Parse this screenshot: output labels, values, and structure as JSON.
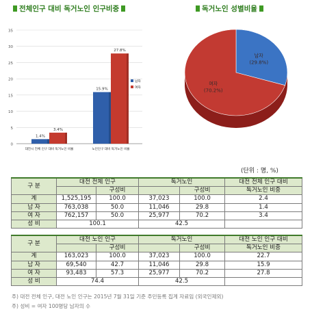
{
  "left_chart": {
    "title": "전체인구 대비 독거노인 인구비중",
    "colors": {
      "male": "#2f5faa",
      "female": "#c43a2e",
      "grid": "#d8d8d8"
    }
  },
  "right_chart": {
    "title": "독거노인 성별비율",
    "colors": {
      "male": "#3b74c4",
      "female": "#c23a32"
    }
  },
  "table": {
    "unit": "(단위 : 명, %)",
    "t1": {
      "h1": "구 분",
      "h2": "대전 전체 인구",
      "h3": "독거노인",
      "h4": "대전 전체 인구 대비",
      "s1": "구성비",
      "s2": "구성비",
      "s3": "독거노인 비중",
      "rows": [
        {
          "label": "계",
          "pop": "1,525,195",
          "pop_ratio": "100.0",
          "alone": "37,023",
          "alone_ratio": "100.0",
          "share": "2.4"
        },
        {
          "label": "남 자",
          "pop": "763,038",
          "pop_ratio": "50.0",
          "alone": "11,046",
          "alone_ratio": "29.8",
          "share": "1.4"
        },
        {
          "label": "여 자",
          "pop": "762,157",
          "pop_ratio": "50.0",
          "alone": "25,977",
          "alone_ratio": "70.2",
          "share": "3.4"
        }
      ],
      "sexratio_label": "성 비",
      "sexratio_pop": "100.1",
      "sexratio_alone": "42.5"
    },
    "t2": {
      "h1": "구 분",
      "h2": "대전 노인 인구",
      "h3": "독거노인",
      "h4": "대전 노인 인구 대비",
      "s1": "구성비",
      "s2": "구성비",
      "s3": "독거노인 비중",
      "rows": [
        {
          "label": "계",
          "pop": "163,023",
          "pop_ratio": "100.0",
          "alone": "37,023",
          "alone_ratio": "100.0",
          "share": "22.7"
        },
        {
          "label": "남 자",
          "pop": "69,540",
          "pop_ratio": "42.7",
          "alone": "11,046",
          "alone_ratio": "29.8",
          "share": "15.9"
        },
        {
          "label": "여 자",
          "pop": "93,483",
          "pop_ratio": "57.3",
          "alone": "25,977",
          "alone_ratio": "70.2",
          "share": "27.8"
        }
      ],
      "sexratio_label": "성 비",
      "sexratio_pop": "74.4",
      "sexratio_alone": "42.5"
    }
  },
  "notes": [
    "주) 대전 전체 인구, 대전 노인 인구는 2015년 7월 31일 기준 주민등록 집계 자료임 (외국인제외)",
    "주) 성비 = 여자 100명당 남자의 수"
  ],
  "chart_data": [
    {
      "type": "bar",
      "title": "전체인구 대비 독거노인 인구비중",
      "categories": [
        "대전시 전체 인구 대비 독거노인 비율",
        "노인인구 대비 독거노인 비율"
      ],
      "series": [
        {
          "name": "남자",
          "values": [
            1.4,
            15.9
          ],
          "labels": [
            "1.4%",
            "15.9%"
          ]
        },
        {
          "name": "여자",
          "values": [
            3.4,
            27.8
          ],
          "labels": [
            "3.4%",
            "27.8%"
          ]
        }
      ],
      "yticks": [
        "0",
        "5",
        "10",
        "15",
        "20",
        "25",
        "30",
        "35"
      ],
      "ylim": [
        0,
        35
      ],
      "grid": true,
      "legend": "right"
    },
    {
      "type": "pie",
      "title": "독거노인 성별비율",
      "slices": [
        {
          "name": "남자",
          "value": 29.8,
          "label": "(29.8%)"
        },
        {
          "name": "여자",
          "value": 70.2,
          "label": "(70.2%)"
        }
      ]
    }
  ]
}
